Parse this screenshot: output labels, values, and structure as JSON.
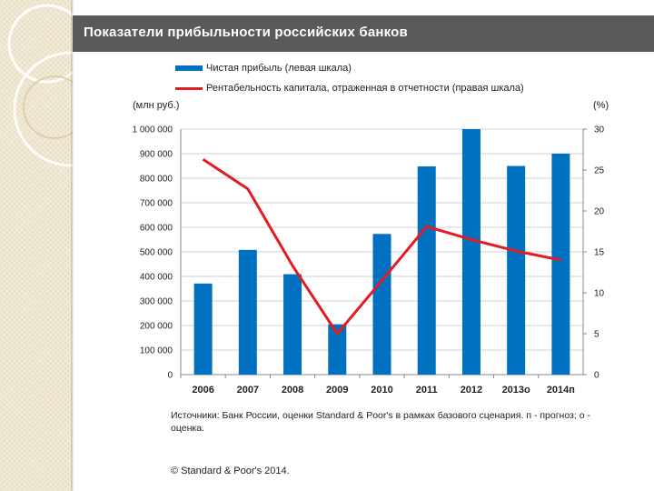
{
  "title": "Показатели прибыльности российских банков",
  "chart_data": {
    "type": "bar+line",
    "categories": [
      "2006",
      "2007",
      "2008",
      "2009",
      "2010",
      "2011",
      "2012",
      "2013о",
      "2014п"
    ],
    "series": [
      {
        "name": "Чистая прибыль (левая шкала)",
        "type": "bar",
        "axis": "left",
        "color": "#0070c0",
        "values": [
          371000,
          508000,
          409000,
          205000,
          573000,
          848000,
          1000000,
          850000,
          900000
        ]
      },
      {
        "name": "Рентабельность капитала, отраженная в отчетности (правая шкала)",
        "type": "line",
        "axis": "right",
        "color": "#e31b23",
        "values": [
          26.3,
          22.7,
          13.3,
          5.0,
          11.5,
          18.1,
          16.5,
          15.1,
          14.0
        ]
      }
    ],
    "y_left": {
      "label": "(млн руб.)",
      "ylim": [
        0,
        1000000
      ],
      "ticks": [
        "0",
        "100 000",
        "200 000",
        "300 000",
        "400 000",
        "500 000",
        "600 000",
        "700 000",
        "800 000",
        "900 000",
        "1 000 000"
      ]
    },
    "y_right": {
      "label": "(%)",
      "ylim": [
        0,
        30
      ],
      "ticks": [
        "0",
        "5",
        "10",
        "15",
        "20",
        "25",
        "30"
      ]
    },
    "grid": true,
    "legend_position": "top-left"
  },
  "source_text": "Источники: Банк России, оценки Standard & Poor's в рамках базового сценария. п - прогноз; о - оценка.",
  "copyright": "© Standard & Poor's 2014."
}
